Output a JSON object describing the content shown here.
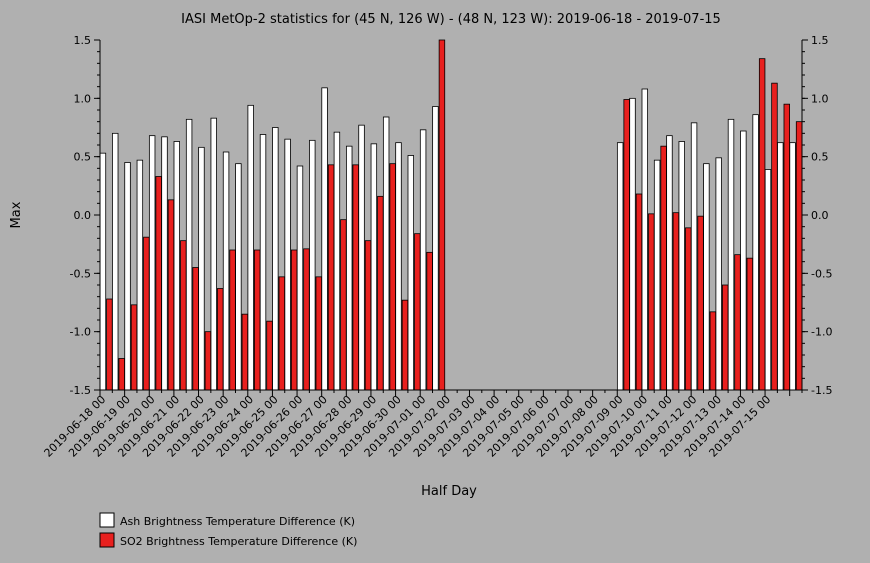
{
  "chart_data": {
    "type": "bar",
    "title": "IASI MetOp-2 statistics for (45 N, 126 W) - (48 N, 123 W): 2019-06-18 - 2019-07-15",
    "xlabel": "Half Day",
    "ylabel": "Max",
    "ylim": [
      -1.5,
      1.5
    ],
    "y_ticks": [
      "-1.5",
      "-1.0",
      "-0.5",
      "0.0",
      "0.5",
      "1.0",
      "1.5"
    ],
    "x_tick_labels": [
      "2019-06-18 00",
      "2019-06-19 00",
      "2019-06-20 00",
      "2019-06-21 00",
      "2019-06-22 00",
      "2019-06-23 00",
      "2019-06-24 00",
      "2019-06-25 00",
      "2019-06-26 00",
      "2019-06-27 00",
      "2019-06-28 00",
      "2019-06-29 00",
      "2019-06-30 00",
      "2019-07-01 00",
      "2019-07-02 00",
      "2019-07-03 00",
      "2019-07-04 00",
      "2019-07-05 00",
      "2019-07-06 00",
      "2019-07-07 00",
      "2019-07-08 00",
      "2019-07-09 00",
      "2019-07-10 00",
      "2019-07-11 00",
      "2019-07-12 00",
      "2019-07-13 00",
      "2019-07-14 00",
      "2019-07-15 00"
    ],
    "grid": false,
    "legend_position": "bottom-left",
    "colors": {
      "ash": "#ffffff",
      "so2": "#e8201e",
      "background": "#b0b0b0"
    },
    "series": [
      {
        "name": "Ash Brightness Temperature Difference (K)",
        "values": [
          0.53,
          0.7,
          0.45,
          0.47,
          0.68,
          0.67,
          0.63,
          0.82,
          0.58,
          0.83,
          0.54,
          0.44,
          0.94,
          0.69,
          0.75,
          0.65,
          0.42,
          0.64,
          1.09,
          0.71,
          0.59,
          0.77,
          0.61,
          0.84,
          0.62,
          0.51,
          0.73,
          0.93,
          null,
          null,
          null,
          null,
          null,
          null,
          null,
          null,
          null,
          null,
          null,
          null,
          null,
          null,
          0.62,
          1.0,
          1.08,
          0.47,
          0.68,
          0.63,
          0.79,
          0.44,
          0.49,
          0.82,
          0.72,
          0.86,
          0.39,
          0.62,
          0.62
        ]
      },
      {
        "name": "SO2 Brightness Temperature Difference (K)",
        "values": [
          -0.72,
          -1.23,
          -0.77,
          -0.19,
          0.33,
          0.13,
          -0.22,
          -0.45,
          -1.0,
          -0.63,
          -0.3,
          -0.85,
          -0.3,
          -0.91,
          -0.53,
          -0.3,
          -0.29,
          -0.53,
          0.43,
          -0.04,
          0.43,
          -0.22,
          0.16,
          0.44,
          -0.73,
          -0.16,
          -0.32,
          1.53,
          null,
          null,
          null,
          null,
          null,
          null,
          null,
          null,
          null,
          null,
          null,
          null,
          null,
          null,
          0.99,
          0.18,
          0.01,
          0.59,
          0.02,
          -0.11,
          -0.01,
          -0.83,
          -0.6,
          -0.34,
          -0.37,
          1.34,
          1.13,
          0.95,
          0.8
        ]
      }
    ]
  }
}
